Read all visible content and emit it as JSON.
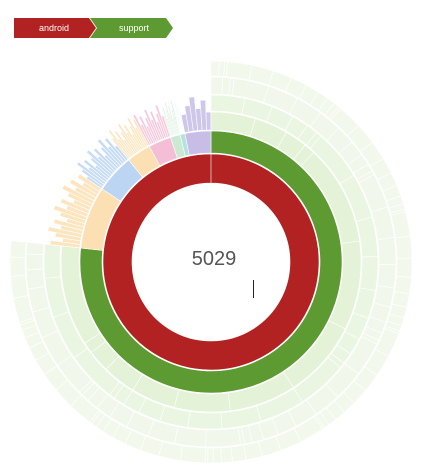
{
  "breadcrumb": [
    {
      "label": "android",
      "color": "#b22222"
    },
    {
      "label": "support",
      "color": "#5d9a32"
    }
  ],
  "center_value": "5029",
  "colors": {
    "android": "#b22222",
    "support": "#5d9a32",
    "support_light": "#dbeecb",
    "support_lighter": "#e8f4dd",
    "lavender": "#c7bde6",
    "blue": "#bcd5f3",
    "orange": "#fce0b4",
    "pink": "#f4bfd6",
    "teal": "#b5e2e0",
    "mint": "#cbead3",
    "yellow": "#fbe98a"
  },
  "chart_data": {
    "type": "sunburst",
    "total": 5029,
    "levels": [
      {
        "name": "android",
        "value": 5029,
        "share": 1.0
      },
      {
        "name": "support",
        "value": 3860,
        "share": 0.767
      }
    ],
    "other_children_shares": [
      {
        "color": "lavender",
        "share": 0.032
      },
      {
        "color": "teal",
        "share": 0.006
      },
      {
        "color": "mint",
        "share": 0.012
      },
      {
        "color": "pink",
        "share": 0.028
      },
      {
        "color": "orange",
        "share": 0.03
      },
      {
        "color": "blue",
        "share": 0.048
      },
      {
        "color": "orange",
        "share": 0.077
      }
    ]
  }
}
